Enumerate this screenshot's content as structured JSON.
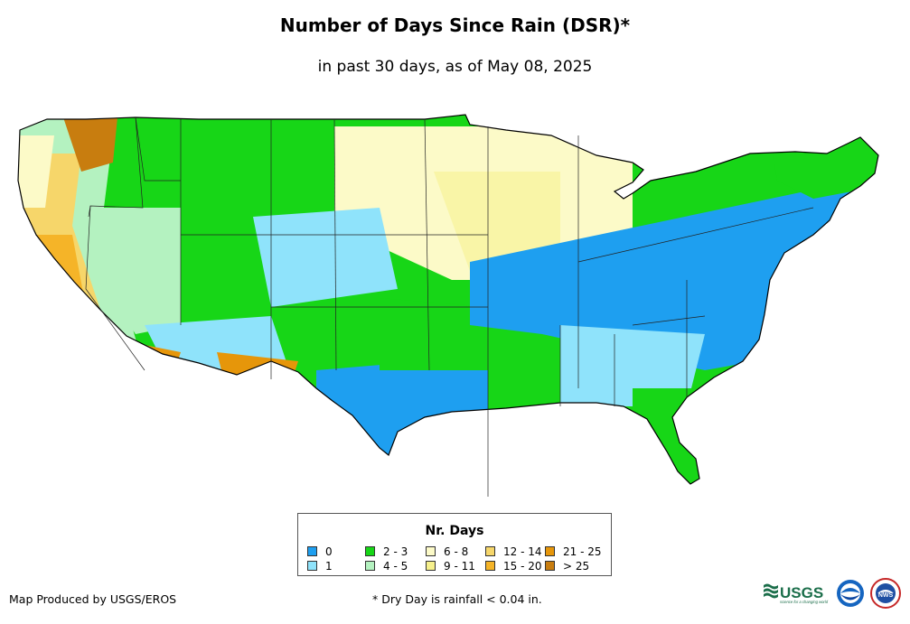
{
  "header": {
    "title": "Number of Days Since Rain (DSR)*",
    "subtitle": "in past 30 days, as of May 08, 2025"
  },
  "legend": {
    "title": "Nr. Days",
    "items": [
      {
        "label": "0",
        "color": "#1e9ff0"
      },
      {
        "label": "1",
        "color": "#8fe3fb"
      },
      {
        "label": "2 - 3",
        "color": "#17d617"
      },
      {
        "label": "4 - 5",
        "color": "#b4f2c0"
      },
      {
        "label": "6 - 8",
        "color": "#fcfac8"
      },
      {
        "label": "9 - 11",
        "color": "#f6f08c"
      },
      {
        "label": "12 - 14",
        "color": "#f6d66a"
      },
      {
        "label": "15 - 20",
        "color": "#f5b428"
      },
      {
        "label": "21 - 25",
        "color": "#e6960a"
      },
      {
        "label": "> 25",
        "color": "#c87d0f"
      }
    ]
  },
  "footer": {
    "credit": "Map Produced by USGS/EROS",
    "footnote": "* Dry Day is rainfall < 0.04 in."
  },
  "logos": {
    "usgs": {
      "text": "USGS",
      "tagline": "science for a changing world",
      "color": "#1b6e4a"
    },
    "noaa": {
      "text": "NOAA"
    },
    "nws": {
      "text": "NWS"
    }
  }
}
